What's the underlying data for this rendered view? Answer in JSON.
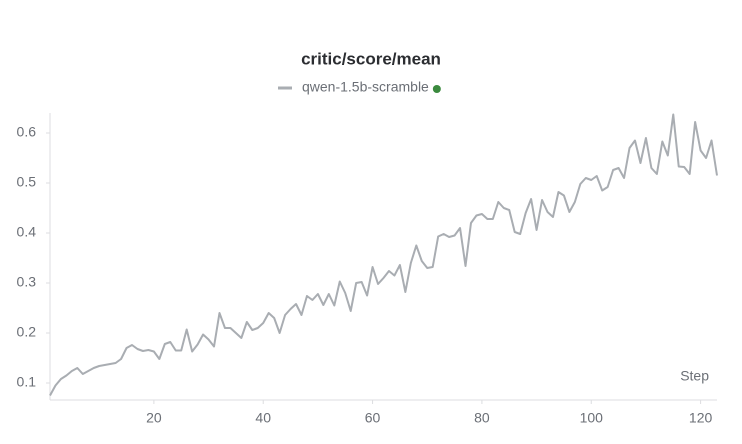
{
  "chart_data": {
    "type": "line",
    "title": "critic/score/mean",
    "x_label": "Step",
    "x": [
      1,
      2,
      3,
      4,
      5,
      6,
      7,
      8,
      9,
      10,
      11,
      12,
      13,
      14,
      15,
      16,
      17,
      18,
      19,
      20,
      21,
      22,
      23,
      24,
      25,
      26,
      27,
      28,
      29,
      30,
      31,
      32,
      33,
      34,
      35,
      36,
      37,
      38,
      39,
      40,
      41,
      42,
      43,
      44,
      45,
      46,
      47,
      48,
      49,
      50,
      51,
      52,
      53,
      54,
      55,
      56,
      57,
      58,
      59,
      60,
      61,
      62,
      63,
      64,
      65,
      66,
      67,
      68,
      69,
      70,
      71,
      72,
      73,
      74,
      75,
      76,
      77,
      78,
      79,
      80,
      81,
      82,
      83,
      84,
      85,
      86,
      87,
      88,
      89,
      90,
      91,
      92,
      93,
      94,
      95,
      96,
      97,
      98,
      99,
      100,
      101,
      102,
      103,
      104,
      105,
      106,
      107,
      108,
      109,
      110,
      111,
      112,
      113,
      114,
      115,
      116,
      117,
      118,
      119,
      120,
      121,
      122,
      123
    ],
    "series": [
      {
        "name": "qwen-1.5b-scramble",
        "color": "#a9adb2",
        "status_color": "#3b8a3e",
        "values": [
          0.075,
          0.095,
          0.108,
          0.115,
          0.124,
          0.13,
          0.118,
          0.124,
          0.13,
          0.134,
          0.136,
          0.138,
          0.14,
          0.148,
          0.17,
          0.176,
          0.168,
          0.164,
          0.166,
          0.163,
          0.148,
          0.178,
          0.182,
          0.165,
          0.165,
          0.207,
          0.163,
          0.177,
          0.197,
          0.187,
          0.173,
          0.24,
          0.21,
          0.21,
          0.2,
          0.19,
          0.222,
          0.206,
          0.21,
          0.22,
          0.24,
          0.23,
          0.2,
          0.236,
          0.248,
          0.258,
          0.236,
          0.274,
          0.266,
          0.278,
          0.256,
          0.278,
          0.255,
          0.303,
          0.28,
          0.244,
          0.3,
          0.302,
          0.275,
          0.332,
          0.298,
          0.31,
          0.324,
          0.315,
          0.336,
          0.282,
          0.34,
          0.375,
          0.344,
          0.33,
          0.332,
          0.393,
          0.398,
          0.392,
          0.395,
          0.41,
          0.334,
          0.42,
          0.435,
          0.438,
          0.428,
          0.428,
          0.462,
          0.45,
          0.446,
          0.402,
          0.398,
          0.44,
          0.468,
          0.406,
          0.466,
          0.442,
          0.432,
          0.482,
          0.475,
          0.442,
          0.462,
          0.498,
          0.51,
          0.506,
          0.514,
          0.485,
          0.492,
          0.526,
          0.53,
          0.51,
          0.57,
          0.585,
          0.54,
          0.59,
          0.53,
          0.518,
          0.583,
          0.555,
          0.637,
          0.533,
          0.532,
          0.518,
          0.622,
          0.565,
          0.55,
          0.585,
          0.515
        ]
      }
    ],
    "xlim": [
      1,
      123
    ],
    "ylim": [
      0.066,
      0.64
    ],
    "xticks": [
      20,
      40,
      60,
      80,
      100,
      120
    ],
    "yticks": [
      0.1,
      0.2,
      0.3,
      0.4,
      0.5,
      0.6
    ],
    "grid": false
  }
}
